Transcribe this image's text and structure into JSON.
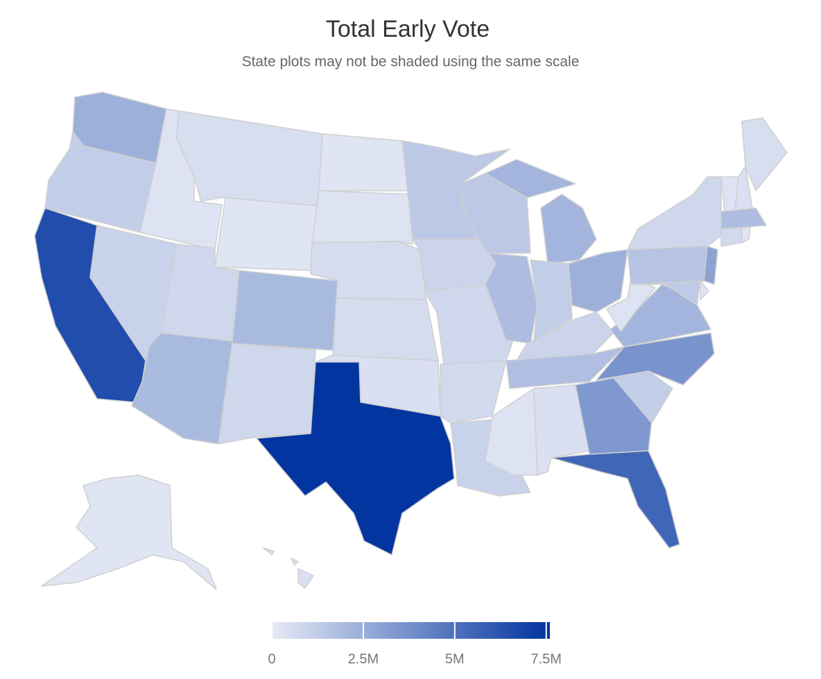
{
  "chart_data": {
    "type": "choropleth",
    "title": "Total Early Vote",
    "subtitle": "State plots may not be shaded using the same scale",
    "values": [
      2400000,
      1200000,
      6500000,
      1000000,
      300000,
      500000,
      200000,
      800000,
      2000000,
      2000000,
      800000,
      200000,
      300000,
      600000,
      600000,
      400000,
      7500000,
      1400000,
      900000,
      800000,
      700000,
      1000000,
      1400000,
      1900000,
      2200000,
      1200000,
      2400000,
      900000,
      1800000,
      300000,
      400000,
      3400000,
      5500000,
      1200000,
      3600000,
      2200000,
      300000,
      1600000,
      800000,
      3000000,
      1300000,
      300000,
      300000,
      400000,
      500000,
      1900000,
      700000,
      200000,
      200000,
      400000
    ],
    "color_range": [
      "#e6eaf5",
      "#0033a0"
    ],
    "zlim": [
      0,
      7600000
    ],
    "zticks": [
      0,
      {
        "value": 2500000,
        "label": "2.5M"
      },
      {
        "value": 5000000,
        "label": "5M"
      },
      {
        "value": 7500000,
        "label": "7.5M"
      }
    ]
  }
}
